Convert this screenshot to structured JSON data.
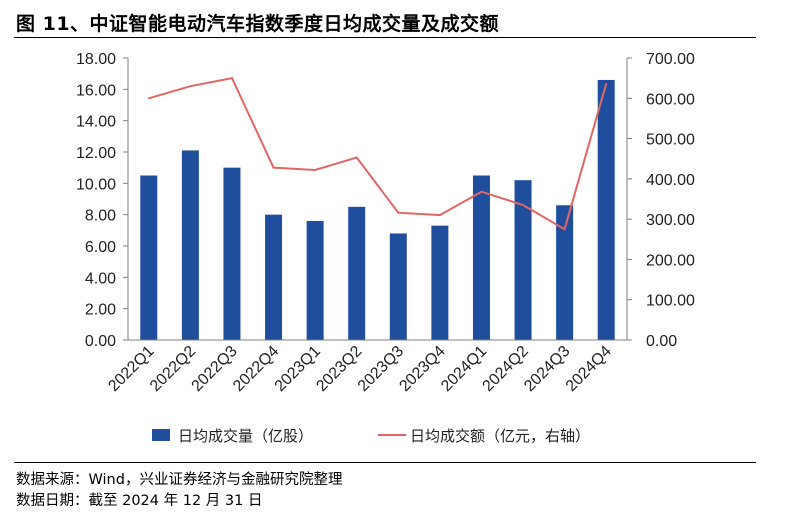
{
  "title": "图 11、中证智能电动汽车指数季度日均成交量及成交额",
  "source_note": "数据来源：Wind，兴业证券经济与金融研究院整理",
  "date_note": "数据日期：截至 2024 年 12 月 31 日",
  "colors": {
    "bar": "#1f4e9c",
    "line": "#e06666",
    "axis": "#7f7f7f"
  },
  "chart_data": {
    "type": "bar",
    "categories": [
      "2022Q1",
      "2022Q2",
      "2022Q3",
      "2022Q4",
      "2023Q1",
      "2023Q2",
      "2023Q3",
      "2023Q4",
      "2024Q1",
      "2024Q2",
      "2024Q3",
      "2024Q4"
    ],
    "series": [
      {
        "name": "日均成交量（亿股）",
        "type": "bar",
        "axis": "left",
        "values": [
          10.5,
          12.1,
          11.0,
          8.0,
          7.6,
          8.5,
          6.8,
          7.3,
          10.5,
          10.2,
          8.6,
          16.6
        ]
      },
      {
        "name": "日均成交额（亿元，右轴）",
        "type": "line",
        "axis": "right",
        "values": [
          600,
          630,
          650,
          428,
          422,
          453,
          316,
          310,
          368,
          335,
          275,
          636
        ]
      }
    ],
    "y_left": {
      "min": 0,
      "max": 18,
      "step": 2,
      "tick_labels": [
        "0.00",
        "2.00",
        "4.00",
        "6.00",
        "8.00",
        "10.00",
        "12.00",
        "14.00",
        "16.00",
        "18.00"
      ]
    },
    "y_right": {
      "min": 0,
      "max": 700,
      "step": 100,
      "tick_labels": [
        "0.00",
        "100.00",
        "200.00",
        "300.00",
        "400.00",
        "500.00",
        "600.00",
        "700.00"
      ]
    },
    "legend_position": "bottom",
    "grid": false
  }
}
